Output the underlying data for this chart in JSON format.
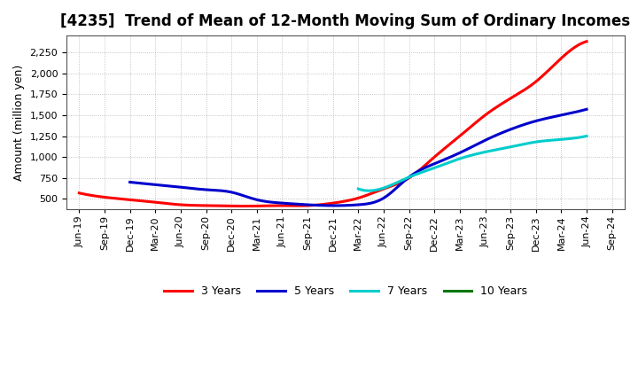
{
  "title": "[4235]  Trend of Mean of 12-Month Moving Sum of Ordinary Incomes",
  "ylabel": "Amount (million yen)",
  "background_color": "#ffffff",
  "grid_color": "#aaaaaa",
  "ylim": [
    375,
    2450
  ],
  "yticks": [
    500,
    750,
    1000,
    1250,
    1500,
    1750,
    2000,
    2250
  ],
  "series": {
    "3 Years": {
      "color": "#ff0000",
      "x_idx": [
        0,
        1,
        2,
        3,
        4,
        5,
        6,
        7,
        8,
        9,
        10,
        11,
        12,
        13,
        14,
        15,
        16,
        17,
        18,
        19,
        20
      ],
      "y": [
        570,
        520,
        490,
        460,
        430,
        420,
        415,
        415,
        420,
        420,
        450,
        510,
        620,
        750,
        1000,
        1250,
        1500,
        1700,
        1900,
        2180,
        2380
      ]
    },
    "5 Years": {
      "color": "#0000cc",
      "x_idx": [
        2,
        3,
        4,
        5,
        6,
        7,
        8,
        9,
        10,
        11,
        12,
        13,
        14,
        15,
        16,
        17,
        18,
        19,
        20
      ],
      "y": [
        700,
        670,
        640,
        610,
        580,
        490,
        450,
        430,
        420,
        430,
        510,
        760,
        920,
        1050,
        1200,
        1330,
        1430,
        1500,
        1570
      ]
    },
    "7 Years": {
      "color": "#00cccc",
      "x_idx": [
        11,
        12,
        13,
        14,
        15,
        16,
        17,
        18,
        19,
        20
      ],
      "y": [
        620,
        630,
        760,
        870,
        980,
        1060,
        1120,
        1180,
        1210,
        1250
      ]
    },
    "10 Years": {
      "color": "#007700",
      "x_idx": [],
      "y": []
    }
  },
  "xtick_labels": [
    "Jun-19",
    "Sep-19",
    "Dec-19",
    "Mar-20",
    "Jun-20",
    "Sep-20",
    "Dec-20",
    "Mar-21",
    "Jun-21",
    "Sep-21",
    "Dec-21",
    "Mar-22",
    "Jun-22",
    "Sep-22",
    "Dec-22",
    "Mar-23",
    "Jun-23",
    "Sep-23",
    "Dec-23",
    "Mar-24",
    "Jun-24",
    "Sep-24"
  ],
  "legend_order": [
    "3 Years",
    "5 Years",
    "7 Years",
    "10 Years"
  ],
  "linewidth": 2.2,
  "title_fontsize": 12,
  "axis_fontsize": 9,
  "tick_fontsize": 8
}
